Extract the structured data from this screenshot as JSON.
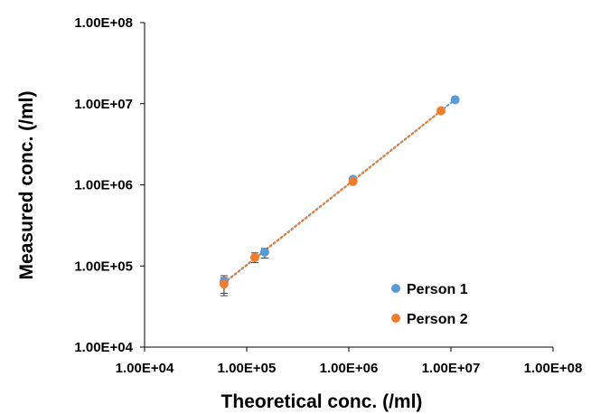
{
  "chart_data": {
    "type": "scatter",
    "xscale": "log",
    "yscale": "log",
    "xlim": [
      10000,
      100000000
    ],
    "ylim": [
      10000,
      100000000
    ],
    "xticks": [
      "1.00E+04",
      "1.00E+05",
      "1.00E+06",
      "1.00E+07",
      "1.00E+08"
    ],
    "yticks": [
      "1.00E+04",
      "1.00E+05",
      "1.00E+06",
      "1.00E+07",
      "1.00E+08"
    ],
    "xlabel": "Theoretical conc. (/ml)",
    "ylabel": "Measured conc.  (/ml)",
    "grid": false,
    "legend_position": "bottom-right",
    "trendline": "dotted",
    "series": [
      {
        "name": "Person 1",
        "color": "#5B9BD5",
        "x": [
          60000,
          150000,
          1100000,
          11000000
        ],
        "y": [
          64000,
          148000,
          1170000,
          11200000
        ],
        "err_low": [
          46000,
          125000,
          null,
          null
        ],
        "err_high": [
          76000,
          165000,
          null,
          null
        ]
      },
      {
        "name": "Person 2",
        "color": "#ED7D31",
        "x": [
          60000,
          120000,
          1100000,
          8000000
        ],
        "y": [
          60000,
          127000,
          1100000,
          8200000
        ],
        "err_low": [
          43000,
          110000,
          null,
          null
        ],
        "err_high": [
          72000,
          145000,
          null,
          null
        ]
      }
    ]
  }
}
